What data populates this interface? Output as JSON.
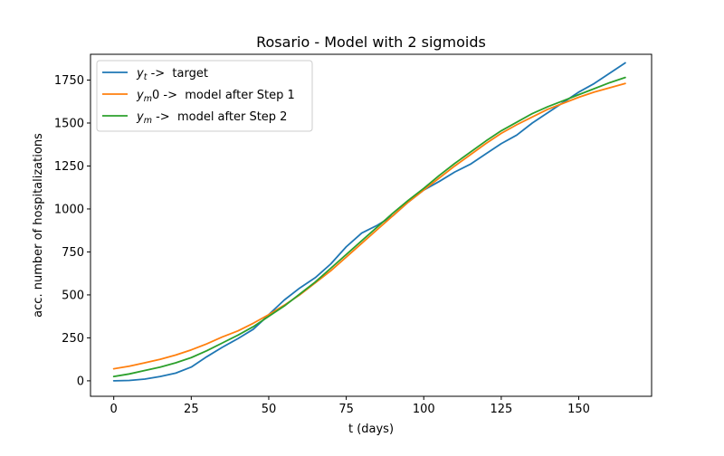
{
  "chart_data": {
    "type": "line",
    "title": "Rosario - Model with 2 sigmoids",
    "xlabel": "t (days)",
    "ylabel": "acc. number of hospitalizations",
    "xlim": [
      -7.5,
      173.5
    ],
    "ylim": [
      -90,
      1900
    ],
    "xticks": [
      0,
      25,
      50,
      75,
      100,
      125,
      150
    ],
    "yticks": [
      0,
      250,
      500,
      750,
      1000,
      1250,
      1500,
      1750
    ],
    "grid": false,
    "legend_position": "top-left",
    "series": [
      {
        "name": "y_t ->  target",
        "legend_base": "y",
        "legend_sub": "t",
        "legend_rest": " ->  target",
        "color": "#1f77b4",
        "x": [
          0,
          5,
          10,
          15,
          20,
          25,
          30,
          35,
          40,
          45,
          48,
          50,
          55,
          60,
          65,
          70,
          75,
          80,
          85,
          90,
          95,
          100,
          105,
          110,
          115,
          120,
          125,
          130,
          135,
          140,
          145,
          150,
          155,
          160,
          165
        ],
        "y": [
          0,
          2,
          10,
          25,
          45,
          80,
          140,
          195,
          245,
          300,
          350,
          385,
          470,
          540,
          600,
          680,
          780,
          860,
          905,
          960,
          1040,
          1110,
          1160,
          1215,
          1260,
          1320,
          1380,
          1430,
          1500,
          1560,
          1620,
          1680,
          1730,
          1790,
          1850
        ]
      },
      {
        "name": "y_m0 ->  model after Step 1",
        "legend_base": "y",
        "legend_sub": "m",
        "legend_rest": "0 ->  model after Step 1",
        "color": "#ff7f0e",
        "x": [
          0,
          5,
          10,
          15,
          20,
          25,
          30,
          35,
          40,
          45,
          50,
          55,
          60,
          65,
          70,
          75,
          80,
          85,
          90,
          95,
          100,
          105,
          110,
          115,
          120,
          125,
          130,
          135,
          140,
          145,
          150,
          155,
          160,
          165
        ],
        "y": [
          70,
          85,
          105,
          125,
          150,
          180,
          215,
          255,
          290,
          335,
          385,
          440,
          500,
          570,
          640,
          720,
          800,
          880,
          960,
          1040,
          1110,
          1180,
          1250,
          1315,
          1380,
          1440,
          1490,
          1535,
          1580,
          1615,
          1650,
          1680,
          1705,
          1730
        ]
      },
      {
        "name": "y_m ->  model after Step 2",
        "legend_base": "y",
        "legend_sub": "m",
        "legend_rest": " ->  model after Step 2",
        "color": "#2ca02c",
        "x": [
          0,
          5,
          10,
          15,
          20,
          25,
          30,
          35,
          40,
          45,
          50,
          55,
          60,
          65,
          70,
          75,
          80,
          85,
          90,
          95,
          100,
          105,
          110,
          115,
          120,
          125,
          130,
          135,
          140,
          145,
          150,
          155,
          160,
          165
        ],
        "y": [
          25,
          40,
          60,
          80,
          105,
          135,
          175,
          220,
          265,
          315,
          375,
          435,
          505,
          575,
          655,
          735,
          815,
          895,
          975,
          1050,
          1120,
          1195,
          1265,
          1330,
          1395,
          1455,
          1505,
          1555,
          1595,
          1630,
          1665,
          1700,
          1735,
          1765
        ]
      }
    ]
  }
}
